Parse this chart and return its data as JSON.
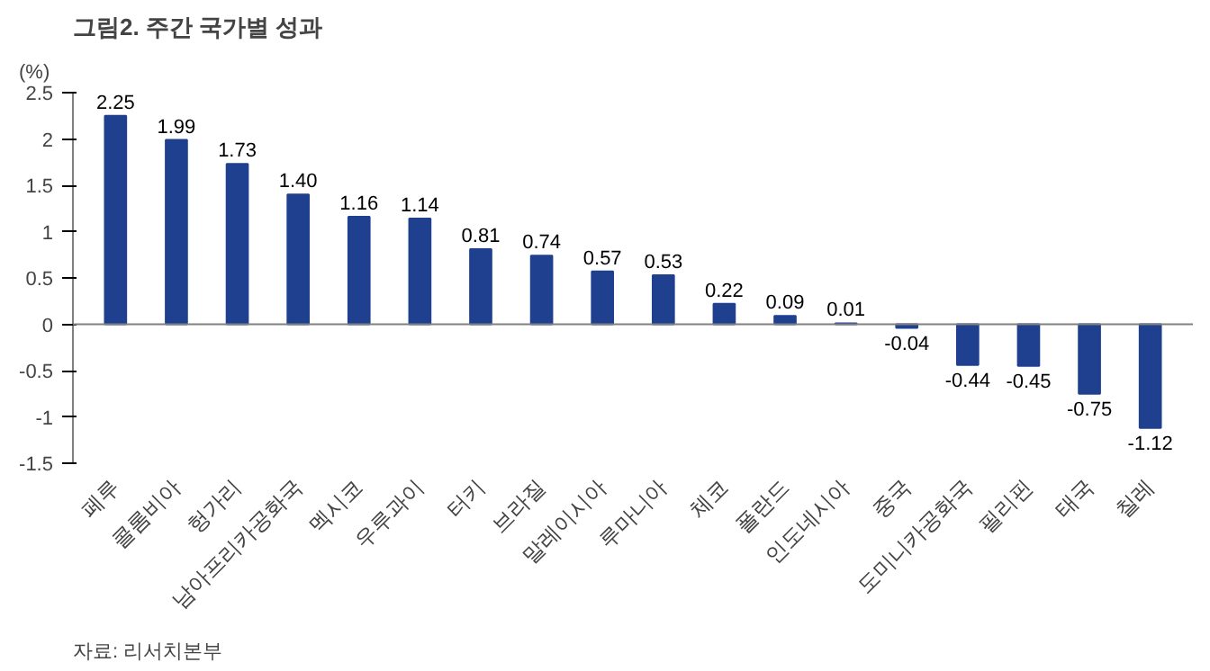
{
  "chart_data": {
    "type": "bar",
    "title": "그림2. 주간 국가별 성과",
    "ylabel": "(%)",
    "categories": [
      "페루",
      "콜롬비아",
      "헝가리",
      "남아프리카공화국",
      "멕시코",
      "우루과이",
      "터키",
      "브라질",
      "말레이시아",
      "루마니아",
      "체코",
      "폴란드",
      "인도네시아",
      "중국",
      "도미니카공화국",
      "필리핀",
      "태국",
      "칠레"
    ],
    "values": [
      2.25,
      1.99,
      1.73,
      1.4,
      1.16,
      1.14,
      0.81,
      0.74,
      0.57,
      0.53,
      0.22,
      0.09,
      0.01,
      -0.04,
      -0.44,
      -0.45,
      -0.75,
      -1.12
    ],
    "value_labels": [
      "2.25",
      "1.99",
      "1.73",
      "1.40",
      "1.16",
      "1.14",
      "0.81",
      "0.74",
      "0.57",
      "0.53",
      "0.22",
      "0.09",
      "0.01",
      "-0.04",
      "-0.44",
      "-0.45",
      "-0.75",
      "-1.12"
    ],
    "color": "#1f3f8f",
    "ylim": [
      -1.5,
      2.5
    ],
    "yticks": [
      -1.5,
      -1,
      -0.5,
      0,
      0.5,
      1,
      1.5,
      2,
      2.5
    ],
    "grid": false,
    "ref_lines": [
      {
        "axis": "y",
        "value": 0,
        "color": "#808080"
      }
    ],
    "annotations": [
      "자료: 리서치본부"
    ]
  }
}
